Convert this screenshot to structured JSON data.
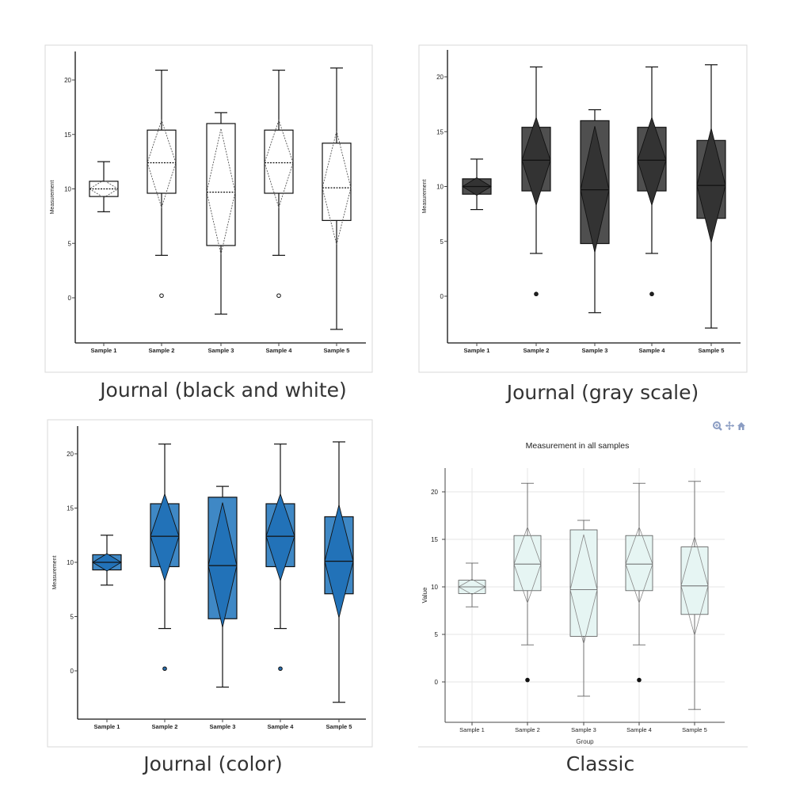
{
  "chart_data": [
    {
      "type": "box",
      "style": "Journal (black and white)",
      "ylabel": "Measurement",
      "xlabel": "",
      "title": "",
      "ylim": [
        -3.5,
        22.5
      ],
      "yticks": [
        0,
        5,
        10,
        15,
        20
      ],
      "categories": [
        "Sample 1",
        "Sample 2",
        "Sample 3",
        "Sample 4",
        "Sample 5"
      ],
      "boxes": [
        {
          "min": 7.9,
          "q1": 9.3,
          "median": 10.0,
          "q3": 10.7,
          "max": 12.5,
          "mean": 10.0,
          "diamond_low": 9.2,
          "diamond_high": 10.8,
          "outliers": []
        },
        {
          "min": 3.9,
          "q1": 9.6,
          "median": 12.4,
          "q3": 15.4,
          "max": 20.9,
          "mean": 12.4,
          "diamond_low": 8.3,
          "diamond_high": 16.3,
          "outliers": [
            0.2
          ]
        },
        {
          "min": -1.5,
          "q1": 4.8,
          "median": 9.7,
          "q3": 16.0,
          "max": 17.0,
          "mean": 9.7,
          "diamond_low": 4.0,
          "diamond_high": 15.5,
          "outliers": []
        },
        {
          "min": 3.9,
          "q1": 9.6,
          "median": 12.4,
          "q3": 15.4,
          "max": 20.9,
          "mean": 12.4,
          "diamond_low": 8.3,
          "diamond_high": 16.3,
          "outliers": [
            0.2
          ]
        },
        {
          "min": -2.9,
          "q1": 7.1,
          "median": 10.1,
          "q3": 14.2,
          "max": 21.1,
          "mean": 10.1,
          "diamond_low": 4.9,
          "diamond_high": 15.3,
          "outliers": []
        }
      ],
      "colors": {
        "box_fill": "#ffffff",
        "line": "#111111",
        "diamond": "#555555",
        "outlier_fill": "#ffffff"
      },
      "grid": false,
      "caption": "Journal (black and white)"
    },
    {
      "type": "box",
      "style": "Journal (gray scale)",
      "ylabel": "Measurement",
      "xlabel": "",
      "title": "",
      "ylim": [
        -3.5,
        22.5
      ],
      "yticks": [
        0,
        5,
        10,
        15,
        20
      ],
      "categories": [
        "Sample 1",
        "Sample 2",
        "Sample 3",
        "Sample 4",
        "Sample 5"
      ],
      "boxes": [
        {
          "min": 7.9,
          "q1": 9.3,
          "median": 10.0,
          "q3": 10.7,
          "max": 12.5,
          "mean": 10.0,
          "diamond_low": 9.2,
          "diamond_high": 10.8,
          "outliers": []
        },
        {
          "min": 3.9,
          "q1": 9.6,
          "median": 12.4,
          "q3": 15.4,
          "max": 20.9,
          "mean": 12.4,
          "diamond_low": 8.3,
          "diamond_high": 16.3,
          "outliers": [
            0.2
          ]
        },
        {
          "min": -1.5,
          "q1": 4.8,
          "median": 9.7,
          "q3": 16.0,
          "max": 17.0,
          "mean": 9.7,
          "diamond_low": 4.0,
          "diamond_high": 15.5,
          "outliers": []
        },
        {
          "min": 3.9,
          "q1": 9.6,
          "median": 12.4,
          "q3": 15.4,
          "max": 20.9,
          "mean": 12.4,
          "diamond_low": 8.3,
          "diamond_high": 16.3,
          "outliers": [
            0.2
          ]
        },
        {
          "min": -2.9,
          "q1": 7.1,
          "median": 10.1,
          "q3": 14.2,
          "max": 21.1,
          "mean": 10.1,
          "diamond_low": 4.9,
          "diamond_high": 15.3,
          "outliers": []
        }
      ],
      "colors": {
        "box_fill": "#4f4f4f",
        "diamond_fill": "#333333",
        "line": "#111111",
        "outlier_fill": "#222222"
      },
      "grid": false,
      "caption": "Journal (gray scale)"
    },
    {
      "type": "box",
      "style": "Journal (color)",
      "ylabel": "Measurement",
      "xlabel": "",
      "title": "",
      "ylim": [
        -3.5,
        22.5
      ],
      "yticks": [
        0,
        5,
        10,
        15,
        20
      ],
      "categories": [
        "Sample 1",
        "Sample 2",
        "Sample 3",
        "Sample 4",
        "Sample 5"
      ],
      "boxes": [
        {
          "min": 7.9,
          "q1": 9.3,
          "median": 10.0,
          "q3": 10.7,
          "max": 12.5,
          "mean": 10.0,
          "diamond_low": 9.2,
          "diamond_high": 10.8,
          "outliers": []
        },
        {
          "min": 3.9,
          "q1": 9.6,
          "median": 12.4,
          "q3": 15.4,
          "max": 20.9,
          "mean": 12.4,
          "diamond_low": 8.3,
          "diamond_high": 16.3,
          "outliers": [
            0.2
          ]
        },
        {
          "min": -1.5,
          "q1": 4.8,
          "median": 9.7,
          "q3": 16.0,
          "max": 17.0,
          "mean": 9.7,
          "diamond_low": 4.0,
          "diamond_high": 15.5,
          "outliers": []
        },
        {
          "min": 3.9,
          "q1": 9.6,
          "median": 12.4,
          "q3": 15.4,
          "max": 20.9,
          "mean": 12.4,
          "diamond_low": 8.3,
          "diamond_high": 16.3,
          "outliers": [
            0.2
          ]
        },
        {
          "min": -2.9,
          "q1": 7.1,
          "median": 10.1,
          "q3": 14.2,
          "max": 21.1,
          "mean": 10.1,
          "diamond_low": 4.9,
          "diamond_high": 15.3,
          "outliers": []
        }
      ],
      "colors": {
        "box_fill": "#3f88c5",
        "diamond_fill": "#2272b8",
        "line": "#111111",
        "outlier_fill": "#2a6fae"
      },
      "grid": false,
      "caption": "Journal (color)"
    },
    {
      "type": "box",
      "style": "Classic",
      "title": "Measurement in all samples",
      "ylabel": "Value",
      "xlabel": "Group",
      "ylim": [
        -4.2,
        22.5
      ],
      "yticks": [
        0,
        5,
        10,
        15,
        20
      ],
      "categories": [
        "Sample 1",
        "Sample 2",
        "Sample 3",
        "Sample 4",
        "Sample 5"
      ],
      "boxes": [
        {
          "min": 7.9,
          "q1": 9.3,
          "median": 10.0,
          "q3": 10.7,
          "max": 12.5,
          "mean": 10.0,
          "diamond_low": 9.2,
          "diamond_high": 10.8,
          "outliers": []
        },
        {
          "min": 3.9,
          "q1": 9.6,
          "median": 12.4,
          "q3": 15.4,
          "max": 20.9,
          "mean": 12.4,
          "diamond_low": 8.3,
          "diamond_high": 16.3,
          "outliers": [
            0.2
          ]
        },
        {
          "min": -1.5,
          "q1": 4.8,
          "median": 9.7,
          "q3": 16.0,
          "max": 17.0,
          "mean": 9.7,
          "diamond_low": 4.0,
          "diamond_high": 15.5,
          "outliers": []
        },
        {
          "min": 3.9,
          "q1": 9.6,
          "median": 12.4,
          "q3": 15.4,
          "max": 20.9,
          "mean": 12.4,
          "diamond_low": 8.3,
          "diamond_high": 16.3,
          "outliers": [
            0.2
          ]
        },
        {
          "min": -2.9,
          "q1": 7.1,
          "median": 10.1,
          "q3": 14.2,
          "max": 21.1,
          "mean": 10.1,
          "diamond_low": 4.9,
          "diamond_high": 15.3,
          "outliers": []
        }
      ],
      "colors": {
        "box_fill": "#e6f5f3",
        "line": "#555555",
        "diamond": "#888888",
        "outlier_fill": "#111111",
        "grid": "#e6e6e6"
      },
      "grid": true,
      "caption": "Classic"
    }
  ],
  "toolbar": {
    "icons": [
      "zoom-icon",
      "pan-icon",
      "home-icon"
    ],
    "color": "#8b9dc3"
  }
}
